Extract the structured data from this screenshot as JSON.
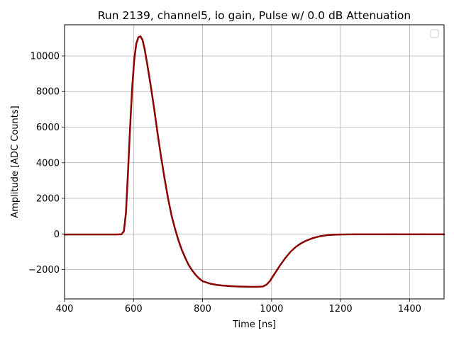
{
  "chart_data": {
    "type": "scatter",
    "title": "Run 2139, channel5, lo gain, Pulse w/ 0.0 dB Attenuation",
    "xlabel": "Time [ns]",
    "ylabel": "Amplitude [ADC Counts]",
    "xlim": [
      400,
      1500
    ],
    "ylim": [
      -3650,
      11750
    ],
    "xticks": [
      400,
      600,
      800,
      1000,
      1200,
      1400
    ],
    "yticks": [
      -2000,
      0,
      2000,
      4000,
      6000,
      8000,
      10000
    ],
    "ytick_labels": [
      "−2000",
      "0",
      "2000",
      "4000",
      "6000",
      "8000",
      "10000"
    ],
    "grid": true,
    "legend": "top-right, empty",
    "series": [
      {
        "color": "#8b0000",
        "marker": "dot",
        "x": [
          400,
          450,
          500,
          550,
          565,
          572,
          578,
          584,
          590,
          596,
          602,
          608,
          614,
          620,
          626,
          632,
          640,
          650,
          660,
          670,
          680,
          690,
          700,
          710,
          720,
          730,
          740,
          750,
          760,
          770,
          780,
          790,
          800,
          820,
          840,
          860,
          880,
          900,
          920,
          940,
          960,
          975,
          985,
          995,
          1005,
          1015,
          1025,
          1040,
          1055,
          1070,
          1085,
          1100,
          1120,
          1140,
          1160,
          1180,
          1200,
          1250,
          1300,
          1350,
          1400,
          1450,
          1500
        ],
        "y": [
          -30,
          -30,
          -30,
          -30,
          -20,
          150,
          1200,
          3500,
          6000,
          8200,
          9800,
          10700,
          11050,
          11100,
          10900,
          10400,
          9500,
          8300,
          7000,
          5600,
          4300,
          3100,
          2000,
          1050,
          300,
          -350,
          -900,
          -1350,
          -1750,
          -2050,
          -2300,
          -2500,
          -2650,
          -2780,
          -2860,
          -2900,
          -2930,
          -2950,
          -2960,
          -2970,
          -2970,
          -2950,
          -2850,
          -2650,
          -2350,
          -2050,
          -1750,
          -1350,
          -1000,
          -730,
          -530,
          -380,
          -230,
          -130,
          -70,
          -40,
          -30,
          -20,
          -20,
          -20,
          -20,
          -20,
          -20
        ]
      }
    ]
  }
}
